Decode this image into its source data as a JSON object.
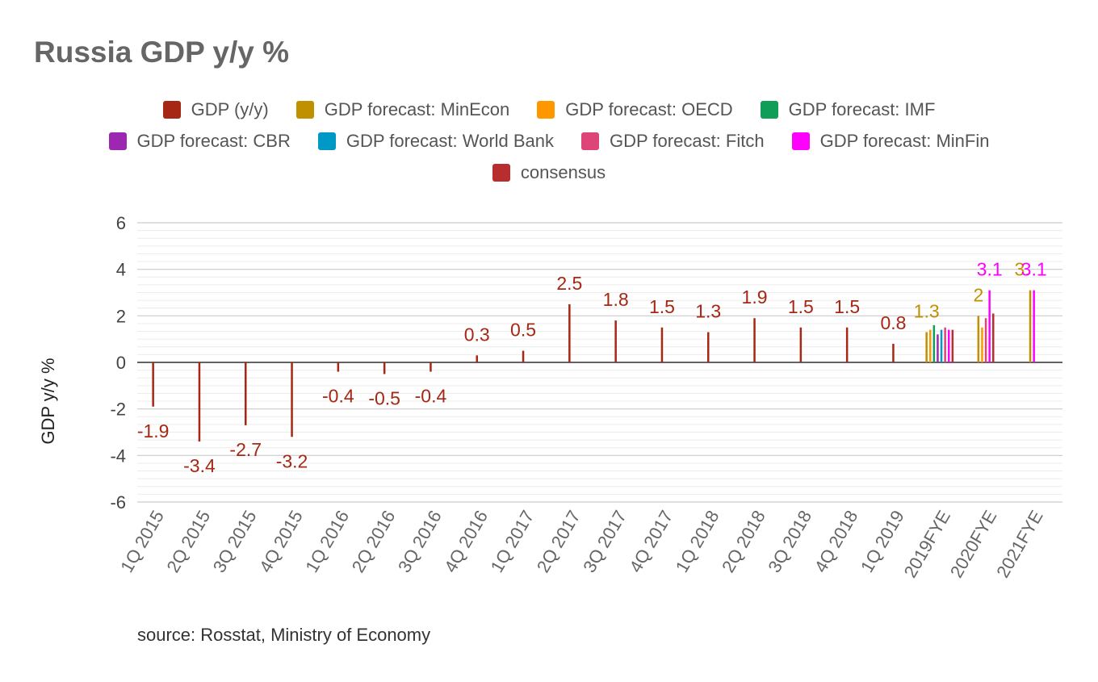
{
  "chart_data": {
    "type": "bar",
    "title": "Russia GDP y/y %",
    "xlabel": "",
    "ylabel": "GDP y/y %",
    "ylim": [
      -6,
      6
    ],
    "yticks": [
      6,
      4,
      2,
      0,
      -2,
      -4,
      -6
    ],
    "grid": true,
    "legend_position": "top",
    "categories": [
      "1Q 2015",
      "2Q 2015",
      "3Q 2015",
      "4Q 2015",
      "1Q 2016",
      "2Q 2016",
      "3Q 2016",
      "4Q 2016",
      "1Q 2017",
      "2Q 2017",
      "3Q 2017",
      "4Q 2017",
      "1Q 2018",
      "2Q 2018",
      "3Q 2018",
      "4Q 2018",
      "1Q 2019",
      "2019FYE",
      "2020FYE",
      "2021FYE"
    ],
    "series": [
      {
        "name": "GDP (y/y)",
        "color": "#a52714",
        "values": [
          -1.9,
          -3.4,
          -2.7,
          -3.2,
          -0.4,
          -0.5,
          -0.4,
          0.3,
          0.5,
          2.5,
          1.8,
          1.5,
          1.3,
          1.9,
          1.5,
          1.5,
          0.8,
          null,
          null,
          null
        ]
      },
      {
        "name": "GDP forecast: MinEcon",
        "color": "#c09000",
        "values": [
          null,
          null,
          null,
          null,
          null,
          null,
          null,
          null,
          null,
          null,
          null,
          null,
          null,
          null,
          null,
          null,
          null,
          1.3,
          2,
          3.1
        ]
      },
      {
        "name": "GDP forecast: OECD",
        "color": "#ff9800",
        "values": [
          null,
          null,
          null,
          null,
          null,
          null,
          null,
          null,
          null,
          null,
          null,
          null,
          null,
          null,
          null,
          null,
          null,
          1.4,
          1.5,
          null
        ]
      },
      {
        "name": "GDP forecast: IMF",
        "color": "#0f9d58",
        "values": [
          null,
          null,
          null,
          null,
          null,
          null,
          null,
          null,
          null,
          null,
          null,
          null,
          null,
          null,
          null,
          null,
          null,
          1.6,
          null,
          null
        ]
      },
      {
        "name": "GDP forecast: CBR",
        "color": "#9c27b0",
        "values": [
          null,
          null,
          null,
          null,
          null,
          null,
          null,
          null,
          null,
          null,
          null,
          null,
          null,
          null,
          null,
          null,
          null,
          1.2,
          null,
          null
        ]
      },
      {
        "name": "GDP forecast: World Bank",
        "color": "#0099c6",
        "values": [
          null,
          null,
          null,
          null,
          null,
          null,
          null,
          null,
          null,
          null,
          null,
          null,
          null,
          null,
          null,
          null,
          null,
          1.4,
          null,
          null
        ]
      },
      {
        "name": "GDP forecast: Fitch",
        "color": "#dd4477",
        "values": [
          null,
          null,
          null,
          null,
          null,
          null,
          null,
          null,
          null,
          null,
          null,
          null,
          null,
          null,
          null,
          null,
          null,
          1.5,
          1.9,
          null
        ]
      },
      {
        "name": "GDP forecast: MinFin",
        "color": "#ff00ff",
        "values": [
          null,
          null,
          null,
          null,
          null,
          null,
          null,
          null,
          null,
          null,
          null,
          null,
          null,
          null,
          null,
          null,
          null,
          1.4,
          3.1,
          3.1
        ]
      },
      {
        "name": "consensus",
        "color": "#b82e2e",
        "values": [
          null,
          null,
          null,
          null,
          null,
          null,
          null,
          null,
          null,
          null,
          null,
          null,
          null,
          null,
          null,
          null,
          null,
          1.4,
          2.1,
          null
        ]
      }
    ],
    "data_labels": [
      {
        "category": "1Q 2015",
        "series": "GDP (y/y)",
        "text": "-1.9"
      },
      {
        "category": "2Q 2015",
        "series": "GDP (y/y)",
        "text": "-3.4"
      },
      {
        "category": "3Q 2015",
        "series": "GDP (y/y)",
        "text": "-2.7"
      },
      {
        "category": "4Q 2015",
        "series": "GDP (y/y)",
        "text": "-3.2"
      },
      {
        "category": "1Q 2016",
        "series": "GDP (y/y)",
        "text": "-0.4"
      },
      {
        "category": "2Q 2016",
        "series": "GDP (y/y)",
        "text": "-0.5"
      },
      {
        "category": "3Q 2016",
        "series": "GDP (y/y)",
        "text": "-0.4"
      },
      {
        "category": "4Q 2016",
        "series": "GDP (y/y)",
        "text": "0.3"
      },
      {
        "category": "1Q 2017",
        "series": "GDP (y/y)",
        "text": "0.5"
      },
      {
        "category": "2Q 2017",
        "series": "GDP (y/y)",
        "text": "2.5"
      },
      {
        "category": "3Q 2017",
        "series": "GDP (y/y)",
        "text": "1.8"
      },
      {
        "category": "4Q 2017",
        "series": "GDP (y/y)",
        "text": "1.5"
      },
      {
        "category": "1Q 2018",
        "series": "GDP (y/y)",
        "text": "1.3"
      },
      {
        "category": "2Q 2018",
        "series": "GDP (y/y)",
        "text": "1.9"
      },
      {
        "category": "3Q 2018",
        "series": "GDP (y/y)",
        "text": "1.5"
      },
      {
        "category": "4Q 2018",
        "series": "GDP (y/y)",
        "text": "1.5"
      },
      {
        "category": "1Q 2019",
        "series": "GDP (y/y)",
        "text": "0.8"
      },
      {
        "category": "2019FYE",
        "series": "GDP forecast: MinEcon",
        "text": "1.3"
      },
      {
        "category": "2020FYE",
        "series": "GDP forecast: MinEcon",
        "text": "2"
      },
      {
        "category": "2020FYE",
        "series": "GDP forecast: MinFin",
        "text": "3.1"
      },
      {
        "category": "2021FYE",
        "series": "GDP forecast: MinEcon",
        "text": "3."
      },
      {
        "category": "2021FYE",
        "series": "GDP forecast: MinFin",
        "text": "3.1"
      }
    ],
    "source": "source: Rosstat, Ministry of Economy"
  }
}
